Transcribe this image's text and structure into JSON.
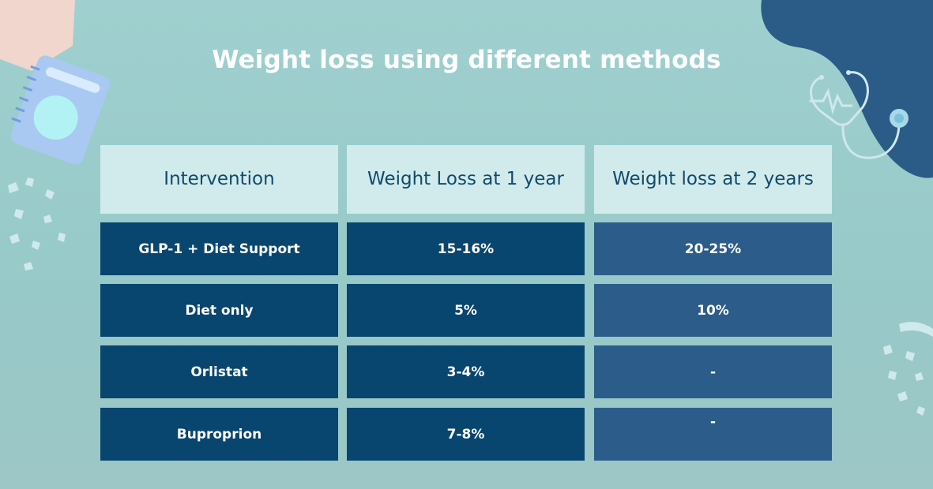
{
  "title": "Weight loss using different methods",
  "table": {
    "headers": [
      "Intervention",
      "Weight Loss at 1 year",
      "Weight loss at 2 years"
    ],
    "rows": [
      [
        "GLP-1 + Diet Support",
        "15-16%",
        "20-25%"
      ],
      [
        "Diet only",
        "5%",
        "10%"
      ],
      [
        "Orlistat",
        "3-4%",
        "-"
      ],
      [
        "Buproprion",
        "7-8%",
        "-"
      ]
    ]
  },
  "colors": {
    "background": "#9fd0cf",
    "header_cell": "#d1ebec",
    "header_text": "#114a6b",
    "dark_cell": "#08456f",
    "mid_cell": "#2c5d8a",
    "blob": "#2b5b87"
  },
  "icons": [
    "notebook-icon",
    "stethoscope-icon",
    "confetti-shapes"
  ]
}
